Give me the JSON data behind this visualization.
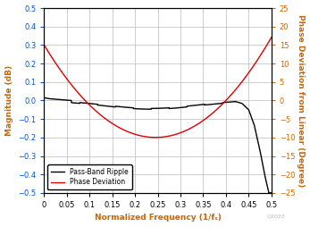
{
  "title": "",
  "xlabel": "Normalized Frequency (1/fₛ)",
  "ylabel_left": "Magnitude (dB)",
  "ylabel_right": "Phase Deviation from Linear (Degree)",
  "xlim": [
    0,
    0.5
  ],
  "ylim_left": [
    -0.5,
    0.5
  ],
  "ylim_right": [
    -25,
    25
  ],
  "yticks_left": [
    -0.5,
    -0.4,
    -0.3,
    -0.2,
    -0.1,
    0.0,
    0.1,
    0.2,
    0.3,
    0.4,
    0.5
  ],
  "yticks_right": [
    -25,
    -20,
    -15,
    -10,
    -5,
    0,
    5,
    10,
    15,
    20,
    25
  ],
  "xticks": [
    0,
    0.05,
    0.1,
    0.15,
    0.2,
    0.25,
    0.3,
    0.35,
    0.4,
    0.45,
    0.5
  ],
  "line_black_color": "#000000",
  "line_red_color": "#dd0000",
  "legend_labels": [
    "Pass-Band Ripple",
    "Phase Deviation"
  ],
  "axis_label_color": "#cc6600",
  "left_tick_color": "#0055cc",
  "right_tick_color": "#cc6600",
  "x_tick_color": "#000000",
  "grid_color": "#bbbbbb",
  "background_color": "#ffffff",
  "watermark": "Q2023",
  "phase_a": 472.6,
  "phase_b": -217.4,
  "phase_c": 15.0,
  "phase_knee": 0.395
}
